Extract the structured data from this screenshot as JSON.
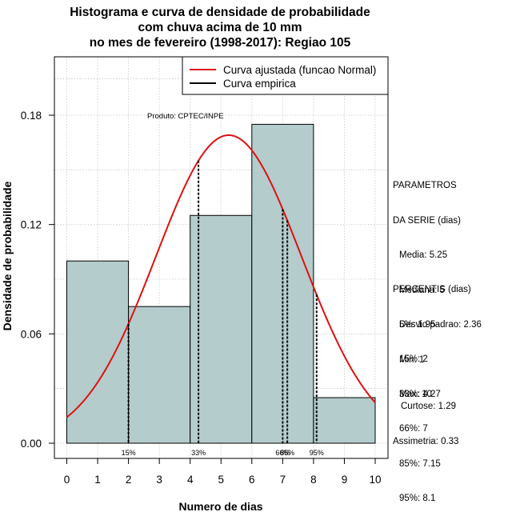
{
  "chart_data": {
    "type": "bar",
    "title_lines": [
      "Histograma e curva de densidade de probabilidade",
      "com chuva acima de 10 mm",
      "no mes de fevereiro (1998-2017): Regiao 105"
    ],
    "xlabel": "Numero de dias",
    "ylabel": "Densidade de probabilidade",
    "xlim": [
      0,
      10
    ],
    "ylim": [
      0,
      0.21
    ],
    "xticks": [
      0,
      1,
      2,
      3,
      4,
      5,
      6,
      7,
      8,
      9,
      10
    ],
    "yticks": [
      0.0,
      0.06,
      0.12,
      0.18
    ],
    "ytick_labels": [
      "0.00",
      "0.06",
      "0.12",
      "0.18"
    ],
    "grid": true,
    "bars": [
      {
        "x0": 0,
        "x1": 2,
        "density": 0.1
      },
      {
        "x0": 2,
        "x1": 4,
        "density": 0.075
      },
      {
        "x0": 4,
        "x1": 6,
        "density": 0.125
      },
      {
        "x0": 6,
        "x1": 8,
        "density": 0.175
      },
      {
        "x0": 8,
        "x1": 10,
        "density": 0.025
      }
    ],
    "bar_color": "#b4cccc",
    "normal_curve": {
      "mean": 5.25,
      "sd": 2.36,
      "color": "#e01010"
    },
    "percentile_lines": [
      {
        "x": 2.0,
        "label": "15%"
      },
      {
        "x": 4.27,
        "label": "33%"
      },
      {
        "x": 7.0,
        "label": "66%"
      },
      {
        "x": 7.15,
        "label": "85%"
      },
      {
        "x": 8.1,
        "label": "95%"
      }
    ],
    "legend": {
      "position": "top-right",
      "entries": [
        {
          "label": "Curva ajustada (funcao Normal)",
          "color": "#e01010"
        },
        {
          "label": "Curva empirica",
          "color": "#000000"
        }
      ]
    },
    "annotation": "Produto: CPTEC/INPE"
  },
  "parametros": {
    "header_lines": [
      "PARAMETROS",
      "DA SERIE (dias)"
    ],
    "items": [
      "Media: 5.25",
      "Mediana: 5",
      "Desvio padrao: 2.36",
      "Min: 1",
      "Max: 10"
    ]
  },
  "percentis": {
    "header": "PERCENTIS (dias)",
    "items": [
      "5%: 1.95",
      "15%: 2",
      "33%: 4.27",
      "66%: 7",
      "85%: 7.15",
      "95%: 8.1"
    ]
  },
  "stats": {
    "curtose": "Curtose: 1.29",
    "assimetria": "Assimetria: 0.33"
  }
}
